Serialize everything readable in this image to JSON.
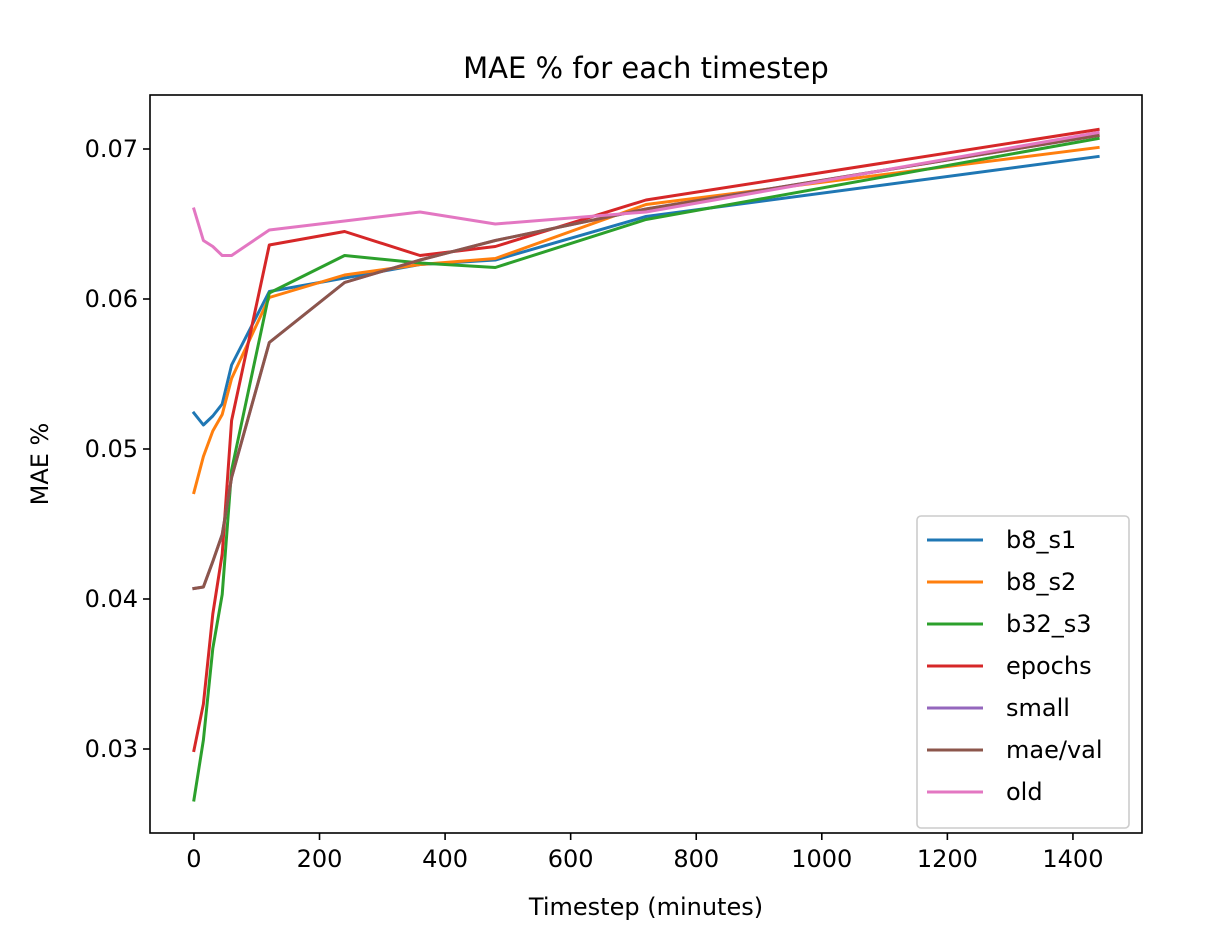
{
  "chart_data": {
    "type": "line",
    "title": "MAE % for each timestep",
    "xlabel": "Timestep (minutes)",
    "ylabel": "MAE %",
    "xlim": [
      -70,
      1510
    ],
    "ylim": [
      0.0244,
      0.0736
    ],
    "xticks": [
      0,
      200,
      400,
      600,
      800,
      1000,
      1200,
      1400
    ],
    "yticks": [
      0.03,
      0.04,
      0.05,
      0.06,
      0.07
    ],
    "xtick_labels": [
      "0",
      "200",
      "400",
      "600",
      "800",
      "1000",
      "1200",
      "1400"
    ],
    "ytick_labels": [
      "0.03",
      "0.04",
      "0.05",
      "0.06",
      "0.07"
    ],
    "grid": false,
    "legend_position": "lower-right",
    "series": [
      {
        "name": "b8_s1",
        "color": "#1f77b4",
        "x": [
          0,
          15,
          30,
          45,
          60,
          120,
          240,
          360,
          480,
          720,
          1440
        ],
        "y": [
          0.0524,
          0.0516,
          0.0522,
          0.053,
          0.0556,
          0.0605,
          0.0614,
          0.0623,
          0.0626,
          0.0655,
          0.0695
        ]
      },
      {
        "name": "b8_s2",
        "color": "#ff7f0e",
        "x": [
          0,
          15,
          30,
          45,
          60,
          120,
          240,
          360,
          480,
          720,
          1440
        ],
        "y": [
          0.0471,
          0.0495,
          0.0512,
          0.0523,
          0.0547,
          0.0601,
          0.0616,
          0.0623,
          0.0627,
          0.0663,
          0.0701
        ]
      },
      {
        "name": "b32_s3",
        "color": "#2ca02c",
        "x": [
          0,
          15,
          30,
          45,
          60,
          120,
          240,
          360,
          480,
          720,
          1440
        ],
        "y": [
          0.0266,
          0.0306,
          0.0367,
          0.0403,
          0.0486,
          0.0604,
          0.0629,
          0.0624,
          0.0621,
          0.0653,
          0.0707
        ]
      },
      {
        "name": "epochs",
        "color": "#d62728",
        "x": [
          0,
          15,
          30,
          45,
          60,
          120,
          240,
          360,
          480,
          720,
          1440
        ],
        "y": [
          0.0299,
          0.033,
          0.039,
          0.043,
          0.0519,
          0.0636,
          0.0645,
          0.0629,
          0.0635,
          0.0666,
          0.0713
        ]
      },
      {
        "name": "small",
        "color": "#9467bd",
        "x": [
          0,
          15,
          30,
          45,
          60,
          120,
          240,
          360,
          480,
          720,
          1440
        ],
        "y": [
          0.0407,
          0.0408,
          0.0425,
          0.0443,
          0.0481,
          0.0571,
          0.0611,
          0.0626,
          0.0639,
          0.066,
          0.0709
        ]
      },
      {
        "name": "mae/val",
        "color": "#8c564b",
        "x": [
          0,
          15,
          30,
          45,
          60,
          120,
          240,
          360,
          480,
          720,
          1440
        ],
        "y": [
          0.0407,
          0.0408,
          0.0425,
          0.0443,
          0.0481,
          0.0571,
          0.0611,
          0.0626,
          0.0639,
          0.066,
          0.0709
        ]
      },
      {
        "name": "old",
        "color": "#e377c2",
        "x": [
          0,
          15,
          30,
          45,
          60,
          120,
          240,
          360,
          480,
          720,
          1440
        ],
        "y": [
          0.066,
          0.0639,
          0.0635,
          0.0629,
          0.0629,
          0.0646,
          0.0652,
          0.0658,
          0.065,
          0.0658,
          0.0711
        ]
      }
    ]
  }
}
